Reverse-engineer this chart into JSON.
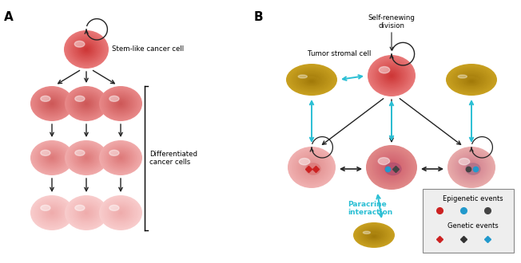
{
  "bg_color": "#ffffff",
  "panel_A_label": "A",
  "panel_B_label": "B",
  "stem_outer": "#e87878",
  "stem_inner": "#cc3333",
  "stem_highlight": "#f0a0a0",
  "diff1_outer": "#e88888",
  "diff1_inner": "#cc5555",
  "diff2_outer": "#f0aaaa",
  "diff2_inner": "#dd7777",
  "diff3_outer": "#f8cccc",
  "diff3_inner": "#eeaaaa",
  "stromal_outer": "#c8a020",
  "stromal_inner": "#a07808",
  "mid_left_outer": "#f0b0b0",
  "mid_left_inner": "#dd8888",
  "mid_center_outer": "#e08888",
  "mid_center_inner": "#cc5566",
  "mid_right_outer": "#e8aaaa",
  "mid_right_inner": "#cc7788",
  "arrow_color": "#222222",
  "cyan": "#2bbfd4",
  "label_stem": "Stem-like cancer cell",
  "label_diff": "Differentiated\ncancer cells",
  "label_B_top": "Self-renewing\ndivision",
  "label_stromal": "Tumor stromal cell",
  "label_paracrine": "Paracrine\ninteraction",
  "legend_epigenetic": "Epigenetic events",
  "legend_genetic": "Genetic events",
  "epi_colors": [
    "#cc2222",
    "#2299cc",
    "#444444"
  ],
  "gen_colors": [
    "#cc2222",
    "#333333",
    "#2299cc"
  ]
}
